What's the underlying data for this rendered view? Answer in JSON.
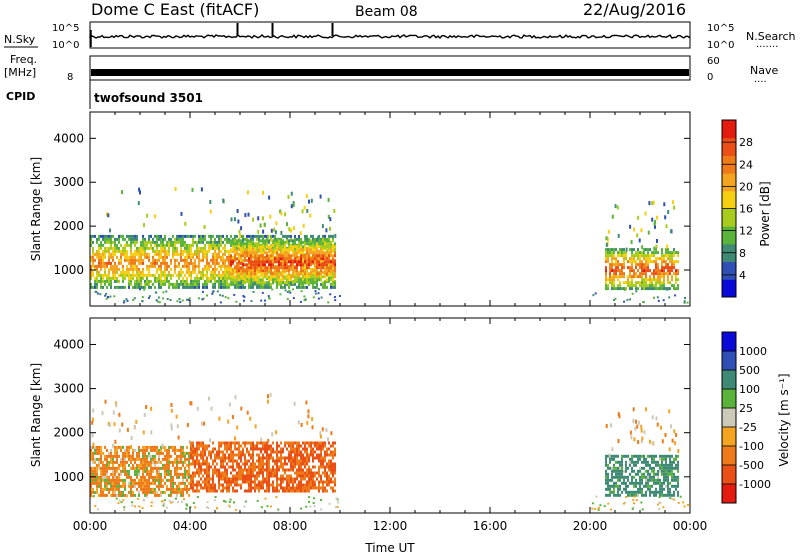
{
  "header": {
    "radar": "Dome C East (fitACF)",
    "beam": "Beam 08",
    "date": "22/Aug/2016"
  },
  "top_panels": {
    "nsky_label": "N.Sky",
    "nsearch_label": "N.Search",
    "nsearch_dots": ".......",
    "noise_ticks": [
      "10^5",
      "10^0"
    ],
    "freq_label_1": "Freq.",
    "freq_label_2": "[MHz]",
    "freq_ticks": [
      "8"
    ],
    "nave_label": "Nave",
    "nave_dots": "....",
    "nave_ticks": [
      "60",
      "0"
    ],
    "cpid_label": "CPID",
    "cpid_value": "twofsound 3501"
  },
  "colors": {
    "power_scale": [
      "#0a0ad8",
      "#2f4fb4",
      "#3f8a74",
      "#5ab33a",
      "#a8cc1d",
      "#f6d010",
      "#f4a420",
      "#ee7a18",
      "#ea4f16",
      "#e41c10"
    ],
    "velocity_scale": [
      "#e41c10",
      "#ea4f16",
      "#ee7a18",
      "#f4a420",
      "#ccc9b8",
      "#5ab33a",
      "#3f8a74",
      "#2f4fb4",
      "#0a0ad8"
    ]
  },
  "chart_data": [
    {
      "type": "line",
      "panel": "noise",
      "ylabels": [
        "N.Sky",
        "N.Search"
      ],
      "ytick_labels": [
        "10^0",
        "10^5"
      ],
      "spike_times_hours": [
        5.9,
        7.3,
        9.7
      ]
    },
    {
      "type": "line",
      "panel": "frequency / nave",
      "ytick_labels_left": [
        "8"
      ],
      "ytick_labels_right": [
        "0",
        "60"
      ]
    },
    {
      "type": "heatmap",
      "panel": "power",
      "ylabel": "Slant Range [km]",
      "ylim": [
        180,
        4600
      ],
      "yticks": [
        1000,
        2000,
        3000,
        4000
      ],
      "xlim": [
        0,
        24
      ],
      "colorbar_label": "Power [dB]",
      "colorbar_ticks": [
        4,
        8,
        12,
        16,
        20,
        24,
        28
      ],
      "colorbar_range": [
        0,
        30
      ],
      "regions": [
        {
          "t0": 0.0,
          "t1": 9.8,
          "r0": 600,
          "r1": 1800,
          "peak": 22
        },
        {
          "t0": 5.6,
          "t1": 9.8,
          "r0": 700,
          "r1": 1700,
          "peak": 28
        },
        {
          "t0": 20.6,
          "t1": 23.5,
          "r0": 600,
          "r1": 1500,
          "peak": 26
        }
      ]
    },
    {
      "type": "heatmap",
      "panel": "velocity",
      "ylabel": "Slant Range [km]",
      "xlabel": "Time UT",
      "ylim": [
        180,
        4600
      ],
      "yticks": [
        1000,
        2000,
        3000,
        4000
      ],
      "xlim": [
        0,
        24
      ],
      "xtick_labels": [
        "00:00",
        "04:00",
        "08:00",
        "12:00",
        "16:00",
        "20:00",
        "00:00"
      ],
      "colorbar_label": "Velocity [m s⁻¹]",
      "colorbar_ticks": [
        -1000,
        -500,
        -100,
        -25,
        25,
        100,
        500,
        1000
      ],
      "regions": [
        {
          "t0": 0.0,
          "t1": 4.0,
          "r0": 600,
          "r1": 1700,
          "velocity": -100
        },
        {
          "t0": 4.0,
          "t1": 9.8,
          "r0": 700,
          "r1": 1800,
          "velocity": -300
        },
        {
          "t0": 20.6,
          "t1": 23.5,
          "r0": 600,
          "r1": 1500,
          "velocity": 150
        }
      ]
    }
  ]
}
